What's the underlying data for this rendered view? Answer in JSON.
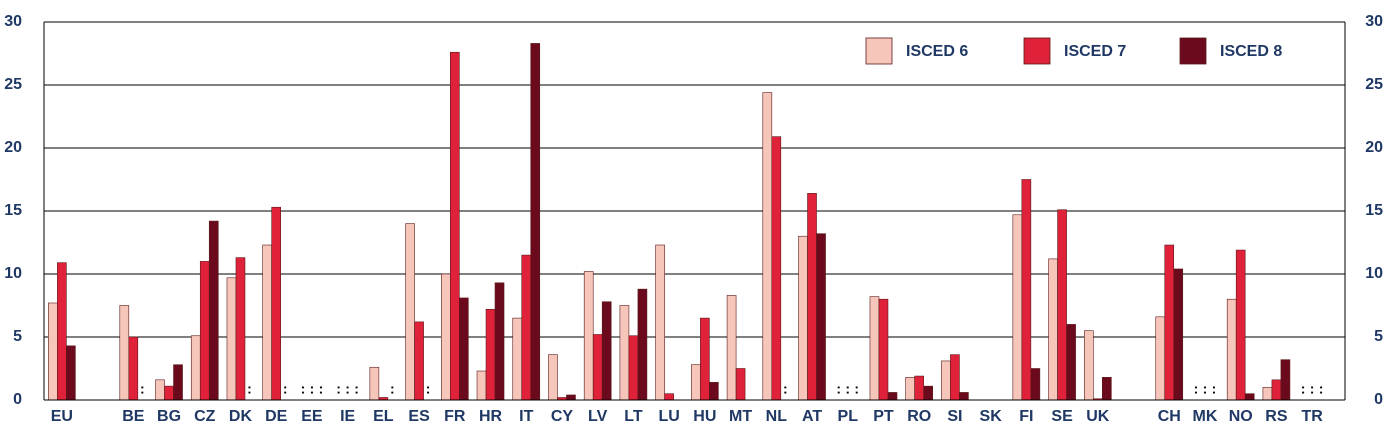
{
  "chart_data": {
    "type": "bar",
    "categories": [
      "EU",
      null,
      "BE",
      "BG",
      "CZ",
      "DK",
      "DE",
      "EE",
      "IE",
      "EL",
      "ES",
      "FR",
      "HR",
      "IT",
      "CY",
      "LV",
      "LT",
      "LU",
      "HU",
      "MT",
      "NL",
      "AT",
      "PL",
      "PT",
      "RO",
      "SI",
      "SK",
      "FI",
      "SE",
      "UK",
      null,
      "CH",
      "MK",
      "NO",
      "RS",
      "TR"
    ],
    "series": [
      {
        "name": "ISCED 6",
        "color": "#f7c6ba",
        "values": [
          7.7,
          null,
          7.5,
          1.6,
          5.1,
          9.7,
          12.3,
          null,
          null,
          2.6,
          14.0,
          10.0,
          2.3,
          6.5,
          3.6,
          10.2,
          7.5,
          12.3,
          2.8,
          8.3,
          24.4,
          13.0,
          null,
          8.2,
          1.8,
          3.1,
          0,
          14.7,
          11.2,
          5.5,
          null,
          6.6,
          null,
          8.0,
          1.0,
          null
        ],
        "value_labels": [
          null,
          null,
          null,
          null,
          null,
          null,
          null,
          ":",
          ":",
          null,
          null,
          null,
          null,
          null,
          null,
          null,
          null,
          null,
          null,
          null,
          null,
          null,
          ":",
          null,
          null,
          null,
          null,
          null,
          null,
          null,
          null,
          null,
          ":",
          null,
          null,
          ":"
        ]
      },
      {
        "name": "ISCED 7",
        "color": "#e0213a",
        "values": [
          10.9,
          null,
          5.0,
          1.1,
          11.0,
          11.3,
          15.3,
          null,
          null,
          0.2,
          6.2,
          27.6,
          7.2,
          11.5,
          0.2,
          5.2,
          5.1,
          0.5,
          6.5,
          2.5,
          20.9,
          16.4,
          null,
          8.0,
          1.9,
          3.6,
          0,
          17.5,
          15.1,
          0.1,
          null,
          12.3,
          null,
          11.9,
          1.6,
          null
        ],
        "value_labels": [
          null,
          null,
          null,
          null,
          null,
          null,
          null,
          ":",
          ":",
          null,
          null,
          null,
          null,
          null,
          null,
          null,
          null,
          null,
          null,
          null,
          null,
          null,
          ":",
          null,
          null,
          null,
          null,
          null,
          null,
          null,
          null,
          null,
          ":",
          null,
          null,
          ":"
        ]
      },
      {
        "name": "ISCED 8",
        "color": "#6b0a1c",
        "values": [
          4.3,
          null,
          null,
          2.8,
          14.2,
          null,
          null,
          null,
          null,
          null,
          null,
          8.1,
          9.3,
          28.3,
          0.4,
          7.8,
          8.8,
          0,
          1.4,
          0,
          null,
          13.2,
          null,
          0.6,
          1.1,
          0.6,
          0,
          2.5,
          6.0,
          1.8,
          null,
          10.4,
          null,
          0.5,
          3.2,
          null
        ],
        "value_labels": [
          null,
          null,
          ":",
          null,
          null,
          ":",
          ":",
          ":",
          ":",
          ":",
          ":",
          null,
          null,
          null,
          null,
          null,
          null,
          null,
          null,
          null,
          ":",
          null,
          ":",
          null,
          null,
          null,
          null,
          null,
          null,
          null,
          null,
          null,
          ":",
          null,
          null,
          ":"
        ]
      }
    ],
    "ylim": [
      0,
      30
    ],
    "yticks": [
      0,
      5,
      10,
      15,
      20,
      25,
      30
    ],
    "grid": true,
    "legend": "top-right"
  }
}
